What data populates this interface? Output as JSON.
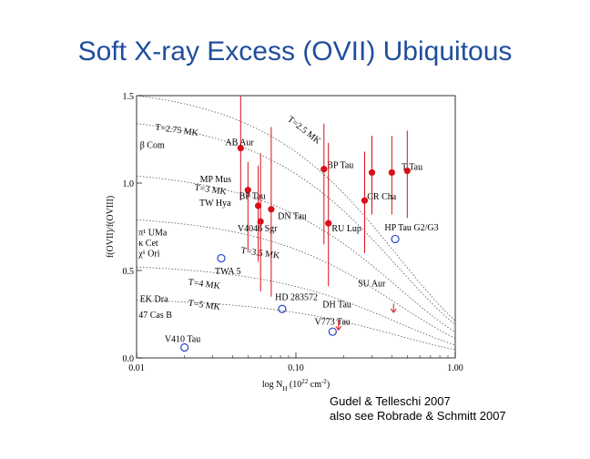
{
  "slide": {
    "title": "Soft X-ray Excess (OVII) Ubiquitous",
    "credit_line1": "Gudel & Telleschi 2007",
    "credit_line2": "also see Robrade & Schmitt 2007"
  },
  "colors": {
    "title": "#1f4e9c",
    "data_red": "#d8101a",
    "data_blue": "#2a45c8",
    "curve": "#555555"
  },
  "chart_data": {
    "type": "scatter",
    "title": "",
    "xlabel": "log N",
    "xlabel_sub": "H",
    "xlabel_unit": " (10",
    "xlabel_exp": "22",
    "xlabel_tail": " cm",
    "xlabel_exp2": "-2",
    "xlabel_close": ")",
    "ylabel": "f(OVII)/f(OVIII)",
    "x_scale": "log",
    "xlim": [
      0.01,
      1.0
    ],
    "ylim": [
      0.0,
      1.5
    ],
    "x_ticks": [
      {
        "value": 0.01,
        "label": "0.01"
      },
      {
        "value": 0.1,
        "label": "0.10"
      },
      {
        "value": 1.0,
        "label": "1.00"
      }
    ],
    "y_ticks": [
      {
        "value": 0.0,
        "label": "0.0"
      },
      {
        "value": 0.5,
        "label": "0.5"
      },
      {
        "value": 1.0,
        "label": "1.0"
      },
      {
        "value": 1.5,
        "label": "1.5"
      }
    ],
    "curves": [
      {
        "label": "T=2.75 MK",
        "y0": 1.34,
        "lx": 0.013,
        "ly": 1.305
      },
      {
        "label": "T=2.5 MK",
        "y0": 1.5,
        "lx": 0.088,
        "ly": 1.36
      },
      {
        "label": "T=3 MK",
        "y0": 1.04,
        "lx": 0.023,
        "ly": 0.96
      },
      {
        "label": "T=3.5 MK",
        "y0": 0.79,
        "lx": 0.045,
        "ly": 0.6
      },
      {
        "label": "T=4 MK",
        "y0": 0.52,
        "lx": 0.021,
        "ly": 0.42
      },
      {
        "label": "T=5 MK",
        "y0": 0.33,
        "lx": 0.021,
        "ly": 0.3
      }
    ],
    "series": [
      {
        "name": "",
        "color": "#d8101a",
        "marker": "filled-circle",
        "points": [
          {
            "x": 0.045,
            "y": 1.2,
            "yerr_low": 0.9,
            "yerr_high": 1.52,
            "label": "AB Aur",
            "lx": 0.036,
            "ly": 1.215
          },
          {
            "x": 0.05,
            "y": 0.96,
            "yerr_low": 0.62,
            "yerr_high": 1.12,
            "label": "MP Mus",
            "lx": 0.025,
            "ly": 1.005
          },
          {
            "x": 0.058,
            "y": 0.87,
            "yerr_low": 0.55,
            "yerr_high": 1.1,
            "label": "BP Tau",
            "lx": 0.044,
            "ly": 0.91
          },
          {
            "x": 0.06,
            "y": 0.78,
            "yerr_low": 0.38,
            "yerr_high": 1.17,
            "label": "V4046 Sgr",
            "lx": 0.043,
            "ly": 0.725
          },
          {
            "x": 0.07,
            "y": 0.85,
            "yerr_low": 0.35,
            "yerr_high": 1.32,
            "label": "DN Tau",
            "lx": 0.077,
            "ly": 0.795
          },
          {
            "x": 0.15,
            "y": 1.08,
            "yerr_low": 0.65,
            "yerr_high": 1.34,
            "label": "BP Tau",
            "lx": 0.157,
            "ly": 1.085
          },
          {
            "x": 0.16,
            "y": 0.77,
            "yerr_low": 0.41,
            "yerr_high": 1.23,
            "label": "RU Lup",
            "lx": 0.168,
            "ly": 0.725
          },
          {
            "x": 0.27,
            "y": 0.9,
            "yerr_low": 0.6,
            "yerr_high": 1.18,
            "label": "CR Cha",
            "lx": 0.28,
            "ly": 0.905
          },
          {
            "x": 0.3,
            "y": 1.06,
            "yerr_low": 0.82,
            "yerr_high": 1.27,
            "label": "T Tau",
            "lx": 0.46,
            "ly": 1.075
          },
          {
            "x": 0.4,
            "y": 1.06,
            "yerr_low": 0.82,
            "yerr_high": 1.27,
            "label": "",
            "lx": 0,
            "ly": 0
          },
          {
            "x": 0.5,
            "y": 1.07,
            "yerr_low": 0.8,
            "yerr_high": 1.3,
            "label": "",
            "lx": 0,
            "ly": 0
          }
        ]
      },
      {
        "name": "",
        "color": "#2a45c8",
        "marker": "open-circle",
        "points": [
          {
            "x": 0.02,
            "y": 0.06,
            "label": "V410 Tau",
            "lx": 0.015,
            "ly": 0.09
          },
          {
            "x": 0.034,
            "y": 0.57,
            "label": "TWA 5",
            "lx": 0.031,
            "ly": 0.48
          },
          {
            "x": 0.082,
            "y": 0.28,
            "label": "HD 283572",
            "lx": 0.074,
            "ly": 0.33
          },
          {
            "x": 0.17,
            "y": 0.15,
            "label": "V773 Tau",
            "lx": 0.131,
            "ly": 0.19
          },
          {
            "x": 0.42,
            "y": 0.68,
            "label": "HP Tau G2/G3",
            "lx": 0.36,
            "ly": 0.73
          }
        ]
      }
    ],
    "annotations": [
      {
        "text": "SU Aur",
        "x": 0.245,
        "y": 0.41
      },
      {
        "text": "DH Tau",
        "x": 0.147,
        "y": 0.29
      },
      {
        "text": "β Com",
        "x": 0.0105,
        "y": 1.2
      },
      {
        "text": "TW Hya",
        "x": 0.0248,
        "y": 0.87
      },
      {
        "text": "π¹ UMa",
        "x": 0.0103,
        "y": 0.7
      },
      {
        "text": "κ Cet",
        "x": 0.0103,
        "y": 0.64
      },
      {
        "text": "χ¹ Ori",
        "x": 0.0103,
        "y": 0.58
      },
      {
        "text": "EK Dra",
        "x": 0.0105,
        "y": 0.32
      },
      {
        "text": "47 Cas B",
        "x": 0.0103,
        "y": 0.23
      }
    ]
  }
}
